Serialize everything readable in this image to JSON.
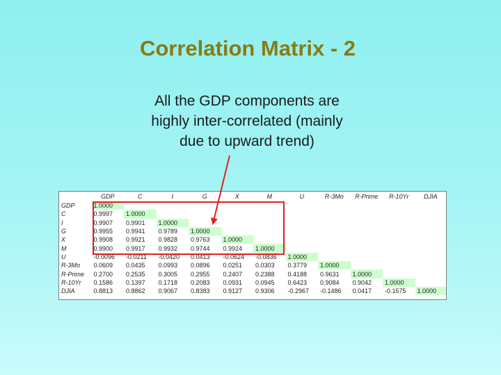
{
  "slide": {
    "title": "Correlation Matrix - 2",
    "subtitle_lines": [
      "All the GDP components are",
      "highly inter-correlated (mainly",
      "due to upward trend)"
    ]
  },
  "matrix": {
    "columns": [
      "GDP",
      "C",
      "I",
      "G",
      "X",
      "M",
      "U",
      "R-3Mo",
      "R-Prime",
      "R-10Yr",
      "DJIA"
    ],
    "rows": [
      {
        "label": "GDP",
        "values": [
          "1.0000"
        ]
      },
      {
        "label": "C",
        "values": [
          "0.9997",
          "1.0000"
        ]
      },
      {
        "label": "I",
        "values": [
          "0.9907",
          "0.9901",
          "1.0000"
        ]
      },
      {
        "label": "G",
        "values": [
          "0.9955",
          "0.9941",
          "0.9789",
          "1.0000"
        ]
      },
      {
        "label": "X",
        "values": [
          "0.9908",
          "0.9921",
          "0.9828",
          "0.9763",
          "1.0000"
        ]
      },
      {
        "label": "M",
        "values": [
          "0.9900",
          "0.9917",
          "0.9932",
          "0.9744",
          "0.9924",
          "1.0000"
        ]
      },
      {
        "label": "U",
        "values": [
          "-0.0096",
          "-0.0211",
          "-0.0420",
          "0.0413",
          "-0.0624",
          "-0.0836",
          "1.0000"
        ]
      },
      {
        "label": "R-3Mo",
        "values": [
          "0.0609",
          "0.0435",
          "0.0993",
          "0.0896",
          "0.0251",
          "0.0303",
          "0.3779",
          "1.0000"
        ]
      },
      {
        "label": "R-Prime",
        "values": [
          "0.2700",
          "0.2535",
          "0.3005",
          "0.2955",
          "0.2407",
          "0.2388",
          "0.4188",
          "0.9631",
          "1.0000"
        ]
      },
      {
        "label": "R-10Yr",
        "values": [
          "0.1586",
          "0.1397",
          "0.1718",
          "0.2083",
          "0.0931",
          "0.0945",
          "0.6423",
          "0.9084",
          "0.9042",
          "1.0000"
        ]
      },
      {
        "label": "DJIA",
        "values": [
          "0.8813",
          "0.8862",
          "0.9067",
          "0.8383",
          "0.9127",
          "0.9306",
          "-0.2967",
          "-0.1486",
          "0.0417",
          "-0.1575",
          "1.0000"
        ]
      }
    ],
    "diagonal_highlight_color": "#ccffcc",
    "box_color": "#e02020"
  },
  "colors": {
    "title": "#8a7a14",
    "background_top": "#8ff0f0",
    "background_bottom": "#c9fbfb"
  }
}
